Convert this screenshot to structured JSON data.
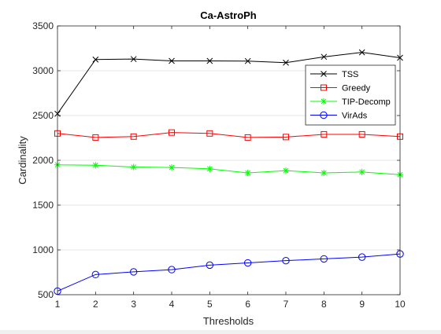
{
  "chart_data": {
    "type": "line",
    "title": "Ca-AstroPh",
    "xlabel": "Thresholds",
    "ylabel": "Cardinality",
    "x": [
      1,
      2,
      3,
      4,
      5,
      6,
      7,
      8,
      9,
      10
    ],
    "xlim": [
      1,
      10
    ],
    "ylim": [
      500,
      3500
    ],
    "xticks": [
      1,
      2,
      3,
      4,
      5,
      6,
      7,
      8,
      9,
      10
    ],
    "yticks": [
      500,
      1000,
      1500,
      2000,
      2500,
      3000,
      3500
    ],
    "grid": true,
    "legend_position": "top-right",
    "series": [
      {
        "name": "TSS",
        "color": "#000000",
        "marker": "x",
        "values": [
          2520,
          3125,
          3130,
          3110,
          3110,
          3108,
          3090,
          3155,
          3205,
          3145
        ]
      },
      {
        "name": "Greedy",
        "color": "#ff0000",
        "marker": "square",
        "values": [
          2300,
          2255,
          2265,
          2310,
          2300,
          2255,
          2260,
          2290,
          2290,
          2265
        ]
      },
      {
        "name": "TIP-Decomp",
        "color": "#00ff00",
        "marker": "asterisk",
        "values": [
          1950,
          1945,
          1925,
          1920,
          1905,
          1860,
          1885,
          1860,
          1870,
          1840
        ]
      },
      {
        "name": "VirAds",
        "color": "#0000ff",
        "marker": "circle",
        "values": [
          540,
          725,
          755,
          780,
          830,
          855,
          880,
          900,
          920,
          955
        ]
      }
    ]
  }
}
